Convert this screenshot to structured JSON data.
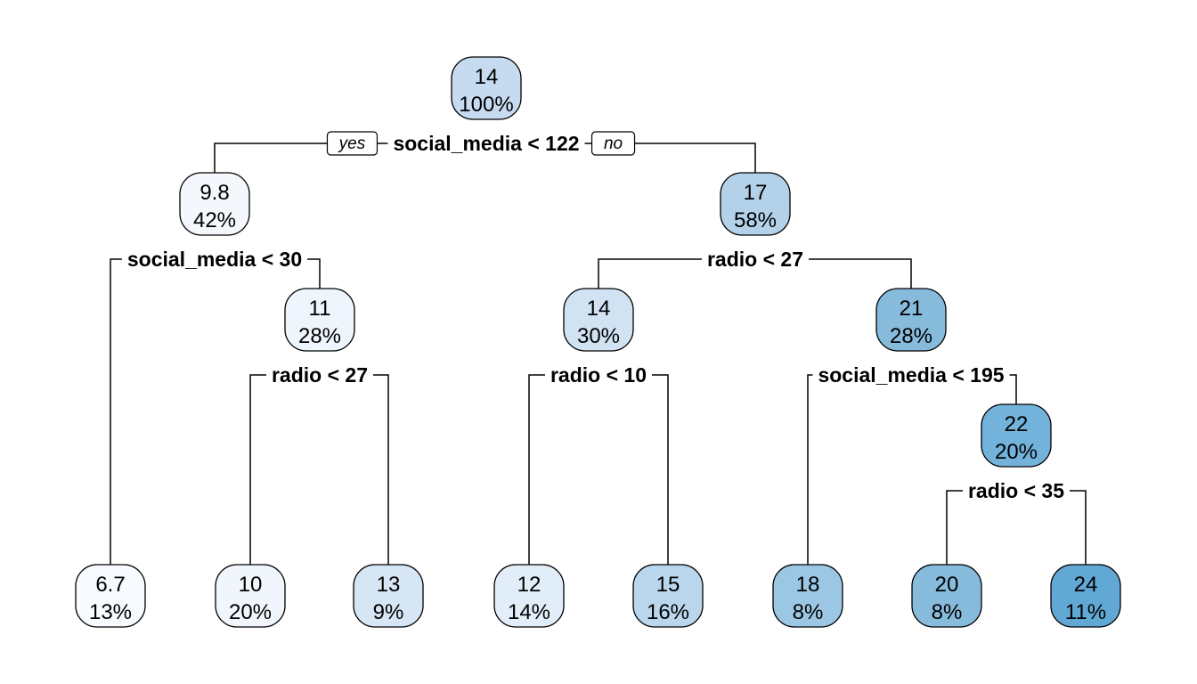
{
  "tree": {
    "yes_label": "yes",
    "no_label": "no",
    "nodes": [
      {
        "id": "n1",
        "value": "14",
        "percent": "100%",
        "fill": "#c6dbef"
      },
      {
        "id": "n2",
        "value": "9.8",
        "percent": "42%",
        "fill": "#f4f8fd"
      },
      {
        "id": "n3",
        "value": "17",
        "percent": "58%",
        "fill": "#b3d2e9"
      },
      {
        "id": "n5",
        "value": "11",
        "percent": "28%",
        "fill": "#eef5fc"
      },
      {
        "id": "n6",
        "value": "14",
        "percent": "30%",
        "fill": "#d1e2f3"
      },
      {
        "id": "n7",
        "value": "21",
        "percent": "28%",
        "fill": "#86bbdc"
      },
      {
        "id": "n15",
        "value": "22",
        "percent": "20%",
        "fill": "#73b2da"
      },
      {
        "id": "l1",
        "value": "6.7",
        "percent": "13%",
        "fill": "#f7fbff"
      },
      {
        "id": "l2",
        "value": "10",
        "percent": "20%",
        "fill": "#f1f6fd"
      },
      {
        "id": "l3",
        "value": "13",
        "percent": "9%",
        "fill": "#d6e6f4"
      },
      {
        "id": "l4",
        "value": "12",
        "percent": "14%",
        "fill": "#e1edf8"
      },
      {
        "id": "l5",
        "value": "15",
        "percent": "16%",
        "fill": "#b9d6ed"
      },
      {
        "id": "l6",
        "value": "18",
        "percent": "8%",
        "fill": "#9cc7e4"
      },
      {
        "id": "l7",
        "value": "20",
        "percent": "8%",
        "fill": "#86bbdc"
      },
      {
        "id": "l8",
        "value": "24",
        "percent": "11%",
        "fill": "#62a8d5"
      }
    ],
    "splits": [
      {
        "id": "s1",
        "label": "social_media < 122"
      },
      {
        "id": "s2",
        "label": "social_media < 30"
      },
      {
        "id": "s3",
        "label": "radio < 27"
      },
      {
        "id": "s5",
        "label": "radio < 27"
      },
      {
        "id": "s6",
        "label": "radio < 10"
      },
      {
        "id": "s7",
        "label": "social_media < 195"
      },
      {
        "id": "s15",
        "label": "radio < 35"
      }
    ]
  }
}
